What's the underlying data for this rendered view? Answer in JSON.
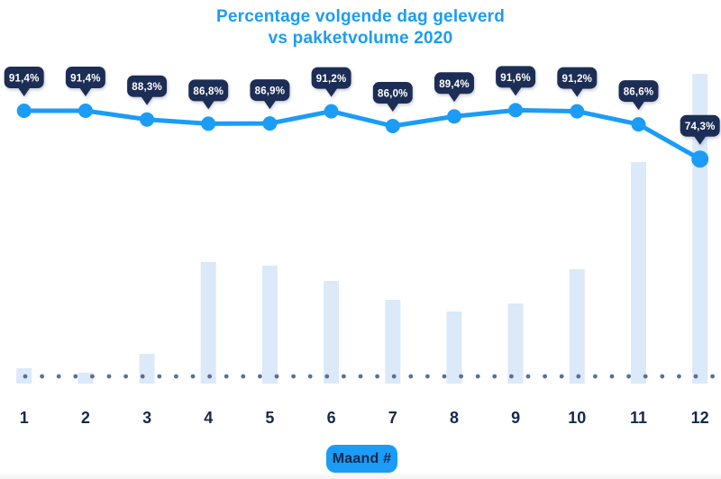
{
  "title": {
    "line1": "Percentage volgende dag geleverd",
    "line2": "vs pakketvolume 2020"
  },
  "xaxis_button": {
    "label": "Maand #"
  },
  "colors": {
    "accent_blue": "#1b9cf6",
    "badge_navy": "#1d2e55",
    "label_navy": "#15294f",
    "bar_fill": "#dbe9f8",
    "baseline_dot": "#5c6f96",
    "badge_text": "#ffffff",
    "background": "#ffffff"
  },
  "chart_data": {
    "type": "combo (line over bar)",
    "title": "Percentage volgende dag geleverd vs pakketvolume 2020",
    "xlabel": "Maand #",
    "ylabel": "",
    "legend": "none",
    "grid": "off",
    "baseline_style": "dotted row of slate dots at zero line",
    "categories": [
      1,
      2,
      3,
      4,
      5,
      6,
      7,
      8,
      9,
      10,
      11,
      12
    ],
    "series": [
      {
        "name": "Percentage volgende dag geleverd",
        "type": "line",
        "unit": "%",
        "values": [
          91.4,
          91.4,
          88.3,
          86.8,
          86.9,
          91.2,
          86.0,
          89.4,
          91.6,
          91.2,
          86.6,
          74.3
        ],
        "point_labels": [
          "91,4%",
          "91,4%",
          "88,3%",
          "86,8%",
          "86,9%",
          "91,2%",
          "86,0%",
          "89,4%",
          "91,6%",
          "91,2%",
          "86,6%",
          "74,3%"
        ]
      },
      {
        "name": "Pakketvolume",
        "type": "bar",
        "unit": "relative height (no value axis shown), px",
        "values": [
          17,
          12,
          33,
          135,
          131,
          114,
          93,
          80,
          89,
          127,
          246,
          344
        ]
      }
    ]
  }
}
